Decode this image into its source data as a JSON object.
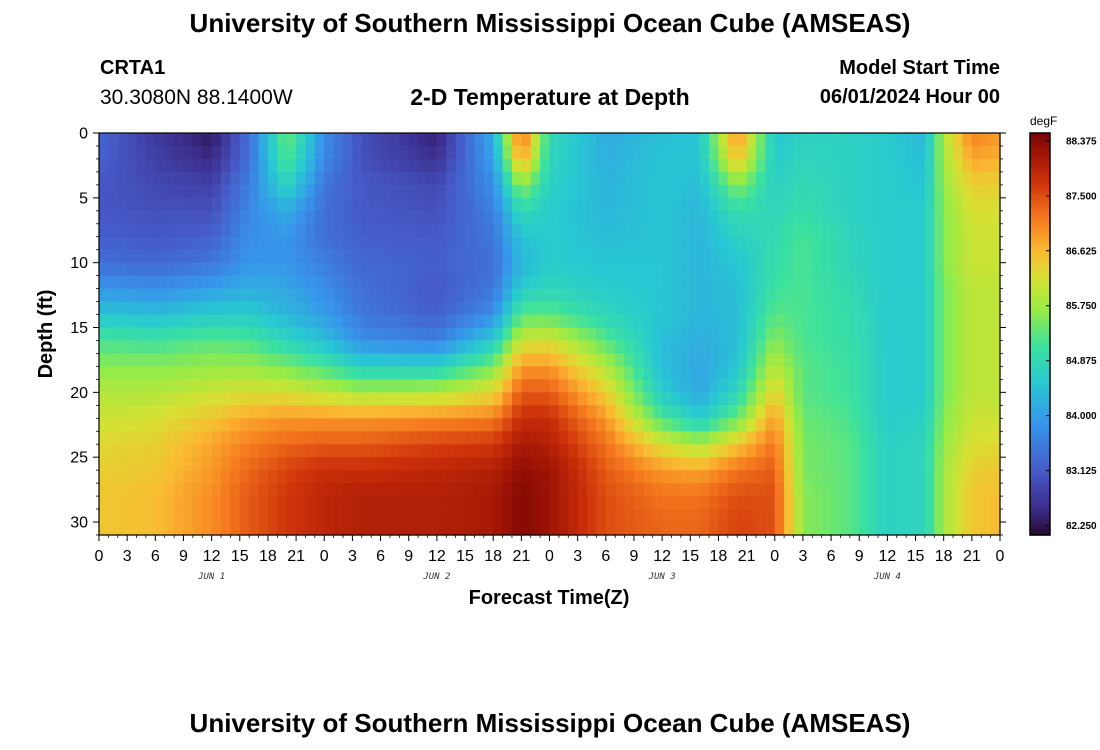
{
  "header": {
    "title": "University of Southern Mississippi Ocean Cube (AMSEAS)",
    "station": "CRTA1",
    "coords": "30.3080N  88.1400W",
    "subtitle": "2-D Temperature at Depth",
    "model_start_label": "Model Start Time",
    "model_start_value": "06/01/2024 Hour 00"
  },
  "footer": {
    "title": "University of Southern Mississippi Ocean Cube (AMSEAS)"
  },
  "chart_data": {
    "type": "heatmap",
    "title": "2-D Temperature at Depth",
    "xlabel": "Forecast Time(Z)",
    "ylabel": "Depth (ft)",
    "x_range_hours": [
      0,
      96
    ],
    "y_range_ft": [
      0,
      31
    ],
    "x_tick_labels": [
      "0",
      "3",
      "6",
      "9",
      "12",
      "15",
      "18",
      "21",
      "0",
      "3",
      "6",
      "9",
      "12",
      "15",
      "18",
      "21",
      "0",
      "3",
      "6",
      "9",
      "12",
      "15",
      "18",
      "21",
      "0",
      "3",
      "6",
      "9",
      "12",
      "15",
      "18",
      "21",
      "0"
    ],
    "y_ticks": [
      0,
      5,
      10,
      15,
      20,
      25,
      30
    ],
    "day_labels": [
      {
        "label": "JUN 1",
        "hour": 12
      },
      {
        "label": "JUN 2",
        "hour": 36
      },
      {
        "label": "JUN 3",
        "hour": 60
      },
      {
        "label": "JUN 4",
        "hour": 84
      }
    ],
    "colorbar": {
      "unit": "degF",
      "min": 82.1,
      "max": 88.5,
      "tick_labels": [
        "88.375",
        "87.500",
        "86.625",
        "85.750",
        "84.875",
        "84.000",
        "83.125",
        "82.250"
      ],
      "tick_values": [
        88.375,
        87.5,
        86.625,
        85.75,
        84.875,
        84.0,
        83.125,
        82.25
      ]
    },
    "z_unit": "degF",
    "temperature_profiles": {
      "depths_ft": [
        0,
        2,
        4,
        6,
        8,
        10,
        12,
        14,
        16,
        18,
        20,
        22,
        24,
        26,
        28,
        30,
        31
      ],
      "columns": [
        {
          "hour": 0,
          "temps": [
            83.3,
            83.2,
            83.1,
            83.1,
            83.2,
            83.4,
            83.9,
            84.5,
            85.2,
            85.6,
            85.9,
            86.1,
            86.3,
            86.4,
            86.5,
            86.5,
            86.5
          ]
        },
        {
          "hour": 6,
          "temps": [
            82.7,
            82.8,
            82.9,
            83.0,
            83.1,
            83.3,
            83.8,
            84.4,
            85.1,
            85.6,
            85.9,
            86.2,
            86.4,
            86.5,
            86.6,
            86.6,
            86.6
          ]
        },
        {
          "hour": 12,
          "temps": [
            82.3,
            82.5,
            82.8,
            83.0,
            83.2,
            83.5,
            84.0,
            84.6,
            85.3,
            85.7,
            86.1,
            86.5,
            86.8,
            86.9,
            87.0,
            87.0,
            87.0
          ]
        },
        {
          "hour": 16,
          "temps": [
            83.4,
            83.4,
            83.6,
            83.7,
            83.8,
            83.9,
            84.2,
            84.6,
            85.2,
            85.7,
            86.2,
            86.8,
            87.1,
            87.3,
            87.4,
            87.4,
            87.4
          ]
        },
        {
          "hour": 20,
          "temps": [
            85.5,
            85.3,
            84.8,
            84.2,
            83.9,
            83.9,
            84.1,
            84.3,
            84.8,
            85.5,
            86.2,
            86.9,
            87.3,
            87.6,
            87.7,
            87.7,
            87.7
          ]
        },
        {
          "hour": 24,
          "temps": [
            83.8,
            83.7,
            83.5,
            83.4,
            83.4,
            83.6,
            83.8,
            84.0,
            84.4,
            85.2,
            86.0,
            86.9,
            87.4,
            87.8,
            87.9,
            87.9,
            87.9
          ]
        },
        {
          "hour": 28,
          "temps": [
            83.0,
            83.0,
            83.1,
            83.1,
            83.2,
            83.3,
            83.4,
            83.5,
            83.8,
            84.7,
            85.8,
            86.9,
            87.4,
            87.8,
            88.0,
            88.0,
            88.0
          ]
        },
        {
          "hour": 36,
          "temps": [
            82.4,
            82.6,
            82.9,
            83.0,
            83.1,
            83.2,
            83.1,
            83.2,
            83.6,
            84.7,
            85.9,
            87.0,
            87.6,
            87.9,
            88.0,
            88.0,
            88.0
          ]
        },
        {
          "hour": 42,
          "temps": [
            84.2,
            84.0,
            83.8,
            83.6,
            83.5,
            83.4,
            83.5,
            83.8,
            84.6,
            85.5,
            86.3,
            87.1,
            87.7,
            88.0,
            88.1,
            88.1,
            88.1
          ]
        },
        {
          "hour": 45,
          "temps": [
            87.4,
            86.9,
            85.7,
            84.9,
            84.5,
            84.3,
            84.6,
            85.3,
            86.1,
            86.9,
            87.4,
            87.8,
            88.1,
            88.3,
            88.4,
            88.4,
            88.4
          ]
        },
        {
          "hour": 48,
          "temps": [
            84.9,
            84.8,
            84.7,
            84.6,
            84.6,
            84.6,
            84.8,
            85.3,
            86.2,
            86.9,
            87.4,
            87.8,
            88.0,
            88.2,
            88.2,
            88.2,
            88.2
          ]
        },
        {
          "hour": 54,
          "temps": [
            84.2,
            84.2,
            84.3,
            84.3,
            84.4,
            84.5,
            84.6,
            84.8,
            85.3,
            85.9,
            86.4,
            86.9,
            87.2,
            87.4,
            87.5,
            87.5,
            87.5
          ]
        },
        {
          "hour": 60,
          "temps": [
            84.4,
            84.5,
            84.5,
            84.5,
            84.5,
            84.5,
            84.5,
            84.5,
            84.4,
            84.4,
            84.6,
            85.2,
            86.2,
            86.9,
            87.2,
            87.3,
            87.3
          ]
        },
        {
          "hour": 64,
          "temps": [
            84.5,
            84.5,
            84.4,
            84.3,
            84.3,
            84.3,
            84.3,
            84.3,
            84.2,
            84.1,
            84.1,
            84.6,
            85.8,
            86.8,
            87.2,
            87.3,
            87.3
          ]
        },
        {
          "hour": 68,
          "temps": [
            87.1,
            86.6,
            85.6,
            85.0,
            84.7,
            84.5,
            84.4,
            84.4,
            84.4,
            84.5,
            84.8,
            85.4,
            86.5,
            87.2,
            87.5,
            87.6,
            87.6
          ]
        },
        {
          "hour": 72,
          "temps": [
            84.5,
            84.6,
            84.7,
            84.8,
            84.9,
            85.0,
            85.1,
            85.3,
            85.6,
            86.0,
            86.4,
            86.9,
            87.2,
            87.4,
            87.5,
            87.5,
            87.5
          ]
        },
        {
          "hour": 75,
          "temps": [
            84.7,
            84.8,
            84.9,
            85.0,
            85.2,
            85.2,
            85.2,
            85.2,
            85.2,
            85.3,
            85.3,
            85.4,
            85.5,
            85.5,
            85.6,
            85.6,
            85.6
          ]
        },
        {
          "hour": 80,
          "temps": [
            84.7,
            84.7,
            84.7,
            84.7,
            84.8,
            84.8,
            84.9,
            85.0,
            85.0,
            85.1,
            85.1,
            85.2,
            85.3,
            85.3,
            85.3,
            85.3,
            85.3
          ]
        },
        {
          "hour": 84,
          "temps": [
            84.6,
            84.6,
            84.6,
            84.6,
            84.6,
            84.6,
            84.6,
            84.6,
            84.6,
            84.6,
            84.6,
            84.6,
            84.7,
            84.7,
            84.7,
            84.7,
            84.7
          ]
        },
        {
          "hour": 88,
          "temps": [
            84.3,
            84.4,
            84.5,
            84.6,
            84.6,
            84.6,
            84.6,
            84.6,
            84.6,
            84.6,
            84.6,
            84.7,
            84.8,
            84.8,
            84.8,
            84.8,
            84.8
          ]
        },
        {
          "hour": 90,
          "temps": [
            85.9,
            85.8,
            85.7,
            85.6,
            85.6,
            85.6,
            85.5,
            85.5,
            85.5,
            85.5,
            85.5,
            85.6,
            85.7,
            85.8,
            85.8,
            85.8,
            85.8
          ]
        },
        {
          "hour": 93,
          "temps": [
            87.1,
            86.8,
            86.4,
            86.2,
            86.1,
            86.1,
            86.0,
            86.0,
            86.0,
            86.0,
            86.0,
            86.1,
            86.2,
            86.4,
            86.5,
            86.5,
            86.5
          ]
        },
        {
          "hour": 96,
          "temps": [
            86.9,
            86.7,
            86.4,
            86.2,
            86.1,
            86.1,
            86.0,
            86.0,
            86.0,
            86.0,
            86.0,
            86.1,
            86.3,
            86.5,
            86.6,
            86.6,
            86.6
          ]
        }
      ]
    }
  }
}
